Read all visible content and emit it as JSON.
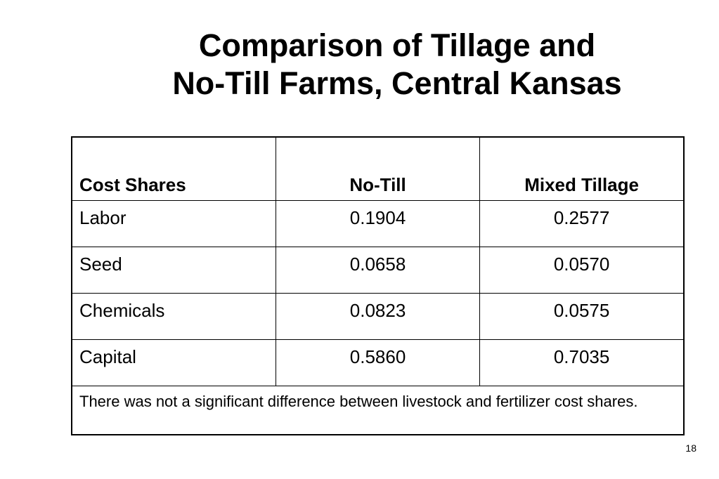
{
  "title": {
    "line1": "Comparison of Tillage and",
    "line2": "No-Till Farms, Central Kansas"
  },
  "table": {
    "headers": [
      "Cost Shares",
      "No-Till",
      "Mixed Tillage"
    ],
    "rows": [
      [
        "Labor",
        "0.1904",
        "0.2577"
      ],
      [
        "Seed",
        "0.0658",
        "0.0570"
      ],
      [
        "Chemicals",
        "0.0823",
        "0.0575"
      ],
      [
        "Capital",
        "0.5860",
        "0.7035"
      ]
    ],
    "note": "There was not a significant difference between livestock and fertilizer cost shares."
  },
  "page_number": "18"
}
